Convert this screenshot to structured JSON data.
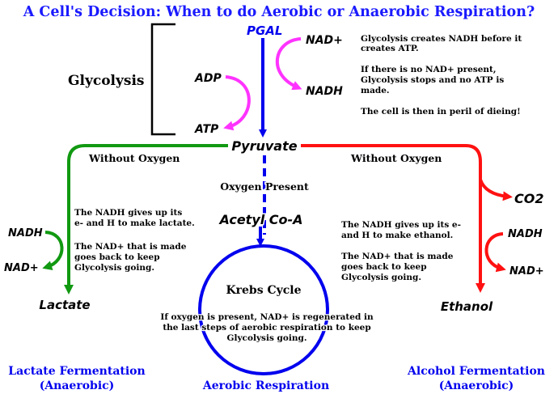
{
  "title": "A Cell's Decision: When to do Aerobic or Anaerobic Respiration?",
  "glycolysis": {
    "label": "Glycolysis",
    "pgal": "PGAL",
    "nad_plus": "NAD+",
    "nadh": "NADH",
    "adp": "ADP",
    "atp": "ATP",
    "pyruvate": "Pyruvate",
    "note_1a": "Glycolysis creates NADH before it",
    "note_1b": "creates ATP.",
    "note_2a": "If there is no NAD+ present,",
    "note_2b": "Glycolysis stops and no ATP is",
    "note_2c": "made.",
    "note_3": "The cell is then in peril of dieing!"
  },
  "left": {
    "without_oxygen": "Without Oxygen",
    "note_1a": "The NADH gives up its",
    "note_1b": "e- and H to make lactate.",
    "note_2a": "The NAD+ that is made",
    "note_2b": "goes back to keep",
    "note_2c": "Glycolysis going.",
    "nadh": "NADH",
    "nad_plus": "NAD+",
    "product": "Lactate",
    "footer_1": "Lactate Fermentation",
    "footer_2": "(Anaerobic)"
  },
  "center": {
    "oxygen_present": "Oxygen Present",
    "acetyl": "Acetyl Co-A",
    "krebs": "Krebs Cycle",
    "note_a": "If oxygen is present, NAD+ is regenerated in",
    "note_b": "the last steps of aerobic respiration to keep",
    "note_c": "Glycolysis going.",
    "footer": "Aerobic Respiration"
  },
  "right": {
    "without_oxygen": "Without Oxygen",
    "co2": "CO2",
    "note_1a": "The NADH gives up its e-",
    "note_1b": "and H to make ethanol.",
    "note_2a": "The NAD+ that is made",
    "note_2b": "goes back to keep",
    "note_2c": "Glycolysis going.",
    "nadh": "NADH",
    "nad_plus": "NAD+",
    "product": "Ethanol",
    "footer_1": "Alcohol Fermentation",
    "footer_2": "(Anaerobic)"
  },
  "colors": {
    "title": "#1a1aff",
    "blue": "#0000ee",
    "magenta": "#ff33ff",
    "green": "#119911",
    "red": "#ff1111",
    "black": "#000000"
  }
}
